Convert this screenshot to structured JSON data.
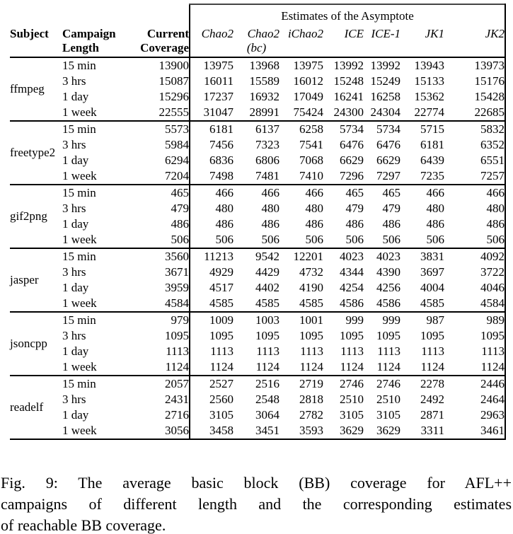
{
  "table": {
    "header": {
      "subject": "Subject",
      "campaign": "Campaign",
      "length": "Length",
      "current": "Current",
      "coverage": "Coverage",
      "estimates_title": "Estimates of the Asymptote",
      "estimate_columns": [
        "Chao2",
        "Chao2",
        "iChao2",
        "ICE",
        "ICE-1",
        "JK1",
        "JK2"
      ],
      "estimate_subnote": "(bc)"
    },
    "groups": [
      {
        "subject": "ffmpeg",
        "rows": [
          {
            "length": "15 min",
            "coverage": "13900",
            "estimates": [
              "13975",
              "13968",
              "13975",
              "13992",
              "13992",
              "13943",
              "13973"
            ]
          },
          {
            "length": "3 hrs",
            "coverage": "15087",
            "estimates": [
              "16011",
              "15589",
              "16012",
              "15248",
              "15249",
              "15133",
              "15176"
            ]
          },
          {
            "length": "1 day",
            "coverage": "15296",
            "estimates": [
              "17237",
              "16932",
              "17049",
              "16241",
              "16258",
              "15362",
              "15428"
            ]
          },
          {
            "length": "1 week",
            "coverage": "22555",
            "estimates": [
              "31047",
              "28991",
              "75424",
              "24300",
              "24304",
              "22774",
              "22685"
            ]
          }
        ]
      },
      {
        "subject": "freetype2",
        "rows": [
          {
            "length": "15 min",
            "coverage": "5573",
            "estimates": [
              "6181",
              "6137",
              "6258",
              "5734",
              "5734",
              "5715",
              "5832"
            ]
          },
          {
            "length": "3 hrs",
            "coverage": "5984",
            "estimates": [
              "7456",
              "7323",
              "7541",
              "6476",
              "6476",
              "6181",
              "6352"
            ]
          },
          {
            "length": "1 day",
            "coverage": "6294",
            "estimates": [
              "6836",
              "6806",
              "7068",
              "6629",
              "6629",
              "6439",
              "6551"
            ]
          },
          {
            "length": "1 week",
            "coverage": "7204",
            "estimates": [
              "7498",
              "7481",
              "7410",
              "7296",
              "7297",
              "7235",
              "7257"
            ]
          }
        ]
      },
      {
        "subject": "gif2png",
        "rows": [
          {
            "length": "15 min",
            "coverage": "465",
            "estimates": [
              "466",
              "466",
              "466",
              "465",
              "465",
              "466",
              "466"
            ]
          },
          {
            "length": "3 hrs",
            "coverage": "479",
            "estimates": [
              "480",
              "480",
              "480",
              "479",
              "479",
              "480",
              "480"
            ]
          },
          {
            "length": "1 day",
            "coverage": "486",
            "estimates": [
              "486",
              "486",
              "486",
              "486",
              "486",
              "486",
              "486"
            ]
          },
          {
            "length": "1 week",
            "coverage": "506",
            "estimates": [
              "506",
              "506",
              "506",
              "506",
              "506",
              "506",
              "506"
            ]
          }
        ]
      },
      {
        "subject": "jasper",
        "rows": [
          {
            "length": "15 min",
            "coverage": "3560",
            "estimates": [
              "11213",
              "9542",
              "12201",
              "4023",
              "4023",
              "3831",
              "4092"
            ]
          },
          {
            "length": "3 hrs",
            "coverage": "3671",
            "estimates": [
              "4929",
              "4429",
              "4732",
              "4344",
              "4390",
              "3697",
              "3722"
            ]
          },
          {
            "length": "1 day",
            "coverage": "3959",
            "estimates": [
              "4517",
              "4402",
              "4190",
              "4254",
              "4256",
              "4004",
              "4046"
            ]
          },
          {
            "length": "1 week",
            "coverage": "4584",
            "estimates": [
              "4585",
              "4585",
              "4585",
              "4586",
              "4586",
              "4585",
              "4584"
            ]
          }
        ]
      },
      {
        "subject": "jsoncpp",
        "rows": [
          {
            "length": "15 min",
            "coverage": "979",
            "estimates": [
              "1009",
              "1003",
              "1001",
              "999",
              "999",
              "987",
              "989"
            ]
          },
          {
            "length": "3 hrs",
            "coverage": "1095",
            "estimates": [
              "1095",
              "1095",
              "1095",
              "1095",
              "1095",
              "1095",
              "1095"
            ]
          },
          {
            "length": "1 day",
            "coverage": "1113",
            "estimates": [
              "1113",
              "1113",
              "1113",
              "1113",
              "1113",
              "1113",
              "1113"
            ]
          },
          {
            "length": "1 week",
            "coverage": "1124",
            "estimates": [
              "1124",
              "1124",
              "1124",
              "1124",
              "1124",
              "1124",
              "1124"
            ]
          }
        ]
      },
      {
        "subject": "readelf",
        "rows": [
          {
            "length": "15 min",
            "coverage": "2057",
            "estimates": [
              "2527",
              "2516",
              "2719",
              "2746",
              "2746",
              "2278",
              "2446"
            ]
          },
          {
            "length": "3 hrs",
            "coverage": "2431",
            "estimates": [
              "2560",
              "2548",
              "2818",
              "2510",
              "2510",
              "2492",
              "2464"
            ]
          },
          {
            "length": "1 day",
            "coverage": "2716",
            "estimates": [
              "3105",
              "3064",
              "2782",
              "3105",
              "3105",
              "2871",
              "2963"
            ]
          },
          {
            "length": "1 week",
            "coverage": "3056",
            "estimates": [
              "3458",
              "3451",
              "3593",
              "3629",
              "3629",
              "3311",
              "3461"
            ]
          }
        ]
      }
    ]
  },
  "caption": {
    "lines": [
      "Fig. 9: The average basic block (BB) coverage for AFL++",
      "campaigns of different length and the corresponding estimates",
      "of reachable BB coverage."
    ]
  }
}
